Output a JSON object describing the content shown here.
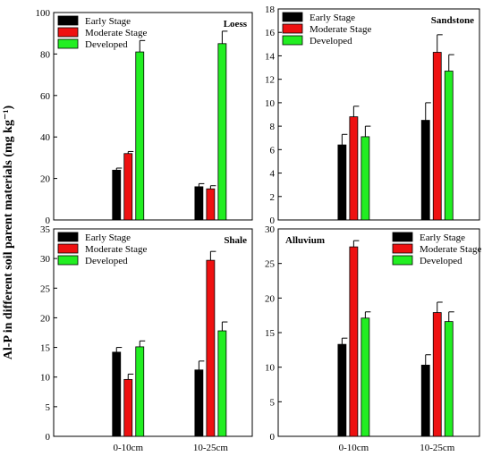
{
  "figure": {
    "ylabel": "Al-P in different soil parent materials (mg kg⁻¹)",
    "categories": [
      "0-10cm",
      "10-25cm"
    ],
    "series": [
      "Early Stage",
      "Moderate Stage",
      "Developed"
    ],
    "colors": {
      "Early Stage": "#000000",
      "Moderate Stage": "#ee1111",
      "Developed": "#22ee22"
    }
  },
  "chart_data": [
    {
      "type": "bar",
      "title": "Loess",
      "categories": [
        "0-10cm",
        "10-25cm"
      ],
      "ylim": [
        0,
        100
      ],
      "yticks": [
        0,
        20,
        40,
        60,
        80,
        100
      ],
      "legend": "top-left",
      "series": [
        {
          "name": "Early Stage",
          "color": "#000000",
          "values": [
            24,
            16
          ],
          "errors": [
            1.0,
            1.5
          ]
        },
        {
          "name": "Moderate Stage",
          "color": "#ee1111",
          "values": [
            32,
            15
          ],
          "errors": [
            1.0,
            1.5
          ]
        },
        {
          "name": "Developed",
          "color": "#22ee22",
          "values": [
            81,
            85
          ],
          "errors": [
            5.5,
            6.0
          ]
        }
      ]
    },
    {
      "type": "bar",
      "title": "Sandstone",
      "categories": [
        "0-10cm",
        "10-25cm"
      ],
      "ylim": [
        0,
        18
      ],
      "yticks": [
        0,
        2,
        4,
        6,
        8,
        10,
        12,
        14,
        16,
        18
      ],
      "legend": "top-left",
      "series": [
        {
          "name": "Early Stage",
          "color": "#000000",
          "values": [
            6.4,
            8.5
          ],
          "errors": [
            0.9,
            1.5
          ]
        },
        {
          "name": "Moderate Stage",
          "color": "#ee1111",
          "values": [
            8.8,
            14.3
          ],
          "errors": [
            0.9,
            1.5
          ]
        },
        {
          "name": "Developed",
          "color": "#22ee22",
          "values": [
            7.1,
            12.7
          ],
          "errors": [
            0.9,
            1.4
          ]
        }
      ]
    },
    {
      "type": "bar",
      "title": "Shale",
      "categories": [
        "0-10cm",
        "10-25cm"
      ],
      "ylim": [
        0,
        35
      ],
      "yticks": [
        0,
        5,
        10,
        15,
        20,
        25,
        30,
        35
      ],
      "legend": "top-left",
      "series": [
        {
          "name": "Early Stage",
          "color": "#000000",
          "values": [
            14.2,
            11.2
          ],
          "errors": [
            0.8,
            1.5
          ]
        },
        {
          "name": "Moderate Stage",
          "color": "#ee1111",
          "values": [
            9.6,
            29.7
          ],
          "errors": [
            0.9,
            1.5
          ]
        },
        {
          "name": "Developed",
          "color": "#22ee22",
          "values": [
            15.1,
            17.8
          ],
          "errors": [
            1.0,
            1.5
          ]
        }
      ]
    },
    {
      "type": "bar",
      "title": "Alluvium",
      "categories": [
        "0-10cm",
        "10-25cm"
      ],
      "ylim": [
        0,
        30
      ],
      "yticks": [
        0,
        5,
        10,
        15,
        20,
        25,
        30
      ],
      "legend": "top-right",
      "series": [
        {
          "name": "Early Stage",
          "color": "#000000",
          "values": [
            13.3,
            10.3
          ],
          "errors": [
            0.9,
            1.5
          ]
        },
        {
          "name": "Moderate Stage",
          "color": "#ee1111",
          "values": [
            27.4,
            17.9
          ],
          "errors": [
            0.9,
            1.5
          ]
        },
        {
          "name": "Developed",
          "color": "#22ee22",
          "values": [
            17.1,
            16.6
          ],
          "errors": [
            0.9,
            1.4
          ]
        }
      ]
    }
  ]
}
